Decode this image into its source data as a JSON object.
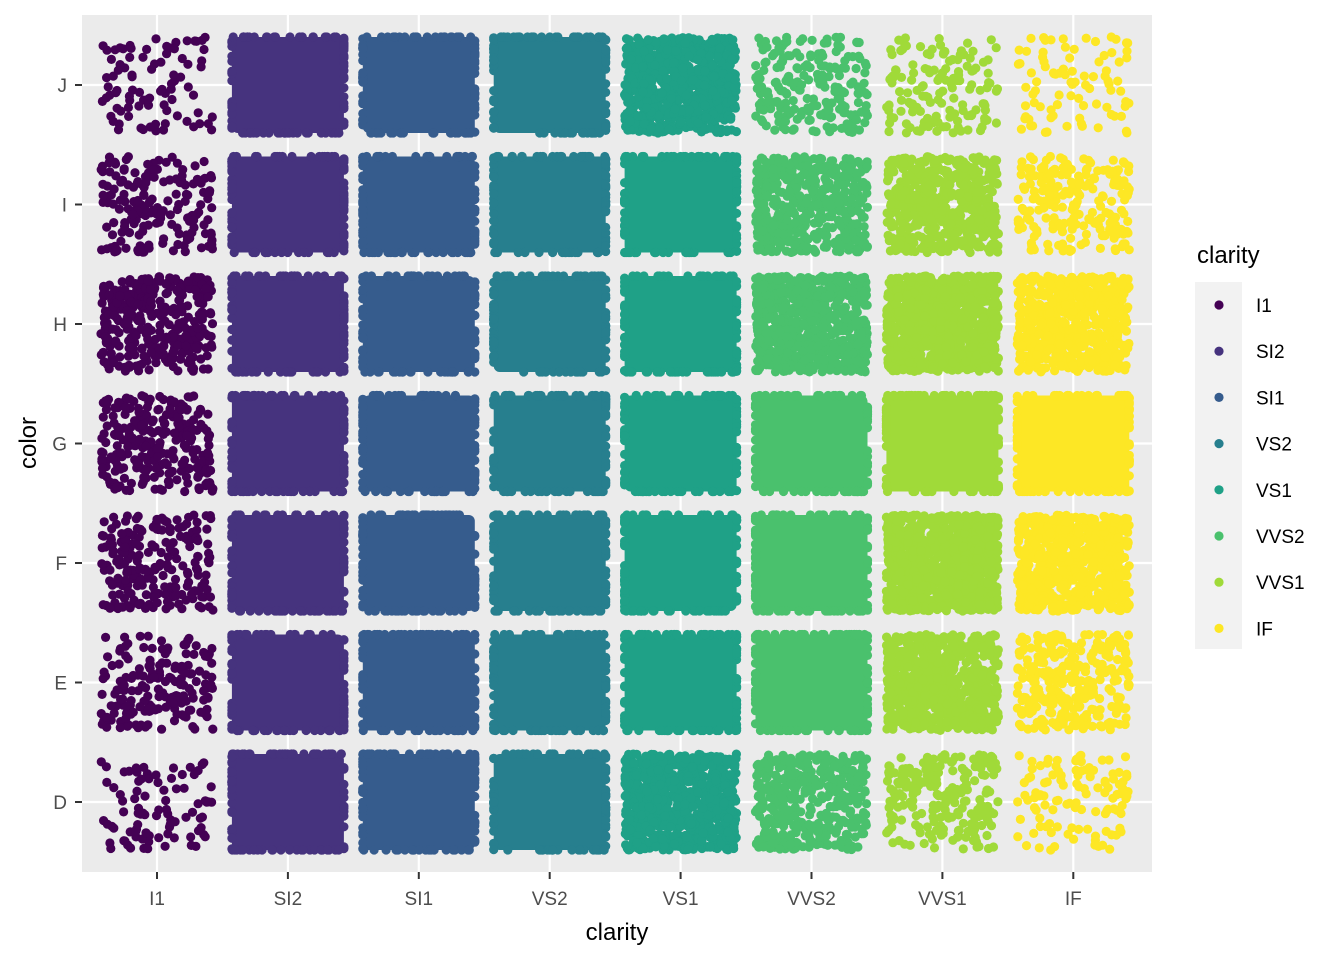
{
  "chart_data": {
    "type": "scatter",
    "subtype": "jittered-categorical",
    "title": "",
    "xlabel": "clarity",
    "ylabel": "color",
    "x_categories": [
      "I1",
      "SI2",
      "SI1",
      "VS2",
      "VS1",
      "VVS2",
      "VVS1",
      "IF"
    ],
    "y_categories": [
      "D",
      "E",
      "F",
      "G",
      "H",
      "I",
      "J"
    ],
    "color_by": "clarity",
    "legend": {
      "title": "clarity",
      "placement": "right",
      "entries": [
        {
          "label": "I1",
          "color": "#440154"
        },
        {
          "label": "SI2",
          "color": "#46337E"
        },
        {
          "label": "SI1",
          "color": "#365C8D"
        },
        {
          "label": "VS2",
          "color": "#277F8E"
        },
        {
          "label": "VS1",
          "color": "#1FA187"
        },
        {
          "label": "VVS2",
          "color": "#4AC16D"
        },
        {
          "label": "VVS1",
          "color": "#A0DA39"
        },
        {
          "label": "IF",
          "color": "#FDE725"
        }
      ]
    },
    "relative_density_rows_D_to_J": [
      [
        0.15,
        1.0,
        1.0,
        1.0,
        0.9,
        0.55,
        0.35,
        0.2
      ],
      [
        0.3,
        1.0,
        1.0,
        1.0,
        1.0,
        1.0,
        0.8,
        0.45
      ],
      [
        0.35,
        1.0,
        1.0,
        1.0,
        1.0,
        1.0,
        0.95,
        0.85
      ],
      [
        0.4,
        1.0,
        1.0,
        1.0,
        1.0,
        1.0,
        1.0,
        1.0
      ],
      [
        0.5,
        1.0,
        1.0,
        1.0,
        1.0,
        0.85,
        0.95,
        0.75
      ],
      [
        0.3,
        1.0,
        1.0,
        1.0,
        1.0,
        0.65,
        0.7,
        0.35
      ],
      [
        0.15,
        1.0,
        1.0,
        1.0,
        0.85,
        0.35,
        0.25,
        0.15
      ]
    ],
    "grid": true,
    "panel_background": "#EBEBEB",
    "grid_color": "#FFFFFF"
  }
}
